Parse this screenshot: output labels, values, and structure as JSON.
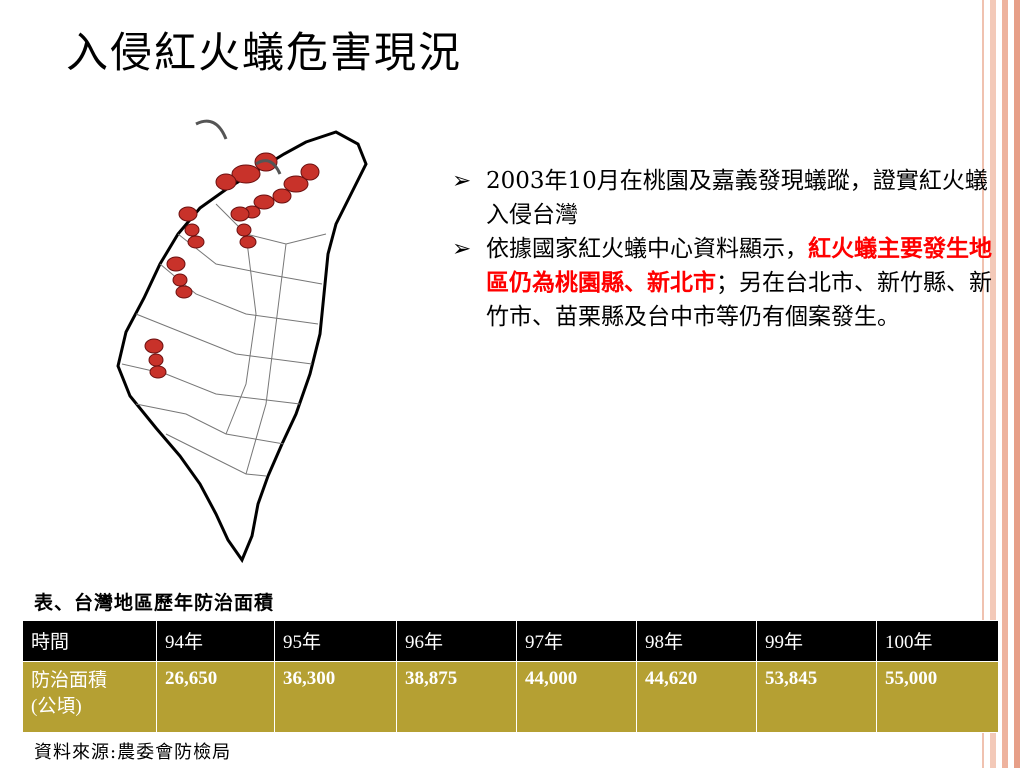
{
  "title": "入侵紅火蟻危害現況",
  "bullets": [
    {
      "mark": "➢",
      "parts": [
        {
          "text": "2003年10月在桃園及嘉義發現蟻蹤，證實紅火蟻入侵台灣",
          "red": false
        }
      ]
    },
    {
      "mark": "➢",
      "parts": [
        {
          "text": "依據國家紅火蟻中心資料顯示，",
          "red": false
        },
        {
          "text": "紅火蟻主要發生地區仍為桃園縣、新北市",
          "red": true
        },
        {
          "text": "；另在台北市、新竹縣、新竹市、苗栗縣及台中市等仍有個案發生。",
          "red": false
        }
      ]
    }
  ],
  "table": {
    "caption": "表、台灣地區歷年防治面積",
    "headers": [
      "時間",
      "94年",
      "95年",
      "96年",
      "97年",
      "98年",
      "99年",
      "100年"
    ],
    "row_label": [
      "防治面積",
      "(公頃)"
    ],
    "values": [
      "26,650",
      "36,300",
      "38,875",
      "44,000",
      "44,620",
      "53,845",
      "55,000"
    ]
  },
  "source": "資料來源:農委會防檢局",
  "colors": {
    "header_bg": "#000000",
    "row_bg": "#b5a033",
    "highlight": "#ff0000",
    "stripes": [
      "#f3c9b8",
      "#eeb39e",
      "#e79f88"
    ]
  }
}
